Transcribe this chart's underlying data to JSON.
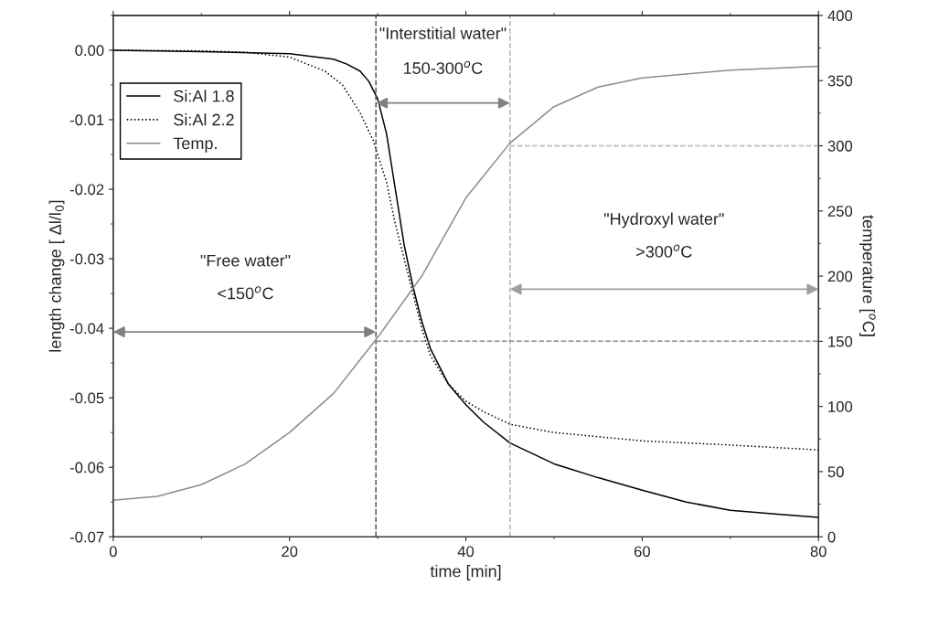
{
  "chart_data": {
    "type": "line",
    "xlabel": "time [min]",
    "ylabel": "length change [ Δl/l$_{0}$]",
    "y2label": "temperature [$^{o}$C]",
    "xlim": [
      0,
      80
    ],
    "xticks": [
      0,
      20,
      40,
      60,
      80
    ],
    "ylim": [
      -0.07,
      0.005
    ],
    "yticks": [
      {
        "value": -0.07,
        "label": "-0.07"
      },
      {
        "value": -0.06,
        "label": "-0.06"
      },
      {
        "value": -0.05,
        "label": "-0.05"
      },
      {
        "value": -0.04,
        "label": "-0.04"
      },
      {
        "value": -0.03,
        "label": "-0.03"
      },
      {
        "value": -0.02,
        "label": "-0.02"
      },
      {
        "value": -0.01,
        "label": "-0.01"
      },
      {
        "value": 0,
        "label": "0.00"
      }
    ],
    "y2lim": [
      0,
      400
    ],
    "y2ticks": [
      0,
      50,
      100,
      150,
      200,
      250,
      300,
      350,
      400
    ],
    "legend": "top left",
    "grid": false,
    "series": [
      {
        "name": "Si:Al 1.8",
        "color": "#000000",
        "line_style": "solid",
        "x": [
          0,
          10,
          20,
          25,
          26.5,
          28,
          29,
          30,
          31,
          32,
          33,
          34,
          35,
          36,
          38,
          40,
          42,
          45,
          50,
          55,
          60,
          65,
          70,
          75,
          80
        ],
        "values": [
          0,
          -0.0002,
          -0.0005,
          -0.0013,
          -0.002,
          -0.003,
          -0.0045,
          -0.007,
          -0.012,
          -0.02,
          -0.028,
          -0.034,
          -0.039,
          -0.043,
          -0.048,
          -0.051,
          -0.0535,
          -0.0565,
          -0.0595,
          -0.0615,
          -0.0633,
          -0.065,
          -0.0662,
          -0.0667,
          -0.0672
        ]
      },
      {
        "name": "Si:Al 2.2",
        "color": "#000000",
        "line_style": "dotted",
        "x": [
          0,
          10,
          15,
          20,
          24,
          26,
          28,
          29.5,
          31,
          32,
          33,
          34,
          35,
          36,
          38,
          40,
          42,
          45,
          50,
          60,
          70,
          80
        ],
        "values": [
          0,
          -0.0001,
          -0.0003,
          -0.001,
          -0.003,
          -0.005,
          -0.009,
          -0.013,
          -0.019,
          -0.025,
          -0.03,
          -0.035,
          -0.04,
          -0.044,
          -0.048,
          -0.0505,
          -0.052,
          -0.0538,
          -0.055,
          -0.0562,
          -0.0568,
          -0.0575
        ]
      },
      {
        "name": "Temp.",
        "color": "#8c8c8c",
        "line_style": "solid",
        "axis": "y2",
        "x": [
          0,
          5,
          10,
          15,
          20,
          25,
          30,
          35,
          40,
          45,
          50,
          55,
          60,
          70,
          80
        ],
        "values": [
          28,
          31,
          40,
          56,
          80,
          110,
          153,
          200,
          260,
          302,
          330,
          345,
          352,
          358,
          361
        ]
      }
    ],
    "ref_lines": [
      {
        "axis": "x",
        "value": 29.8,
        "color": "#555555",
        "line_style": "dashed"
      },
      {
        "axis": "x",
        "value": 45,
        "color": "#b0b0b0",
        "line_style": "dashed"
      },
      {
        "axis": "y2",
        "value": 150,
        "color": "#888888",
        "line_style": "dashed"
      },
      {
        "axis": "y2",
        "value": 300,
        "color": "#b0b0b0",
        "line_style": "dashed"
      }
    ],
    "annotations": [
      "\"Free water\"",
      "<150$^{o}$C",
      "\"Interstitial water\"",
      "150-300$^{o}$C",
      "\"Hydroxyl water\"",
      ">300$^{o}$C"
    ]
  }
}
